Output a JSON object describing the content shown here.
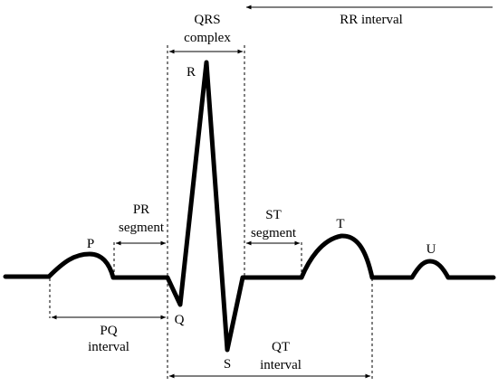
{
  "diagram": {
    "wave_labels": {
      "p": "P",
      "q": "Q",
      "r": "R",
      "s": "S",
      "t": "T",
      "u": "U"
    },
    "qrs_complex": {
      "line1": "QRS",
      "line2": "complex"
    },
    "rr_interval": "RR interval",
    "pr_segment": {
      "line1": "PR",
      "line2": "segment"
    },
    "st_segment": {
      "line1": "ST",
      "line2": "segment"
    },
    "pq_interval": {
      "line1": "PQ",
      "line2": "interval"
    },
    "qt_interval": {
      "line1": "QT",
      "line2": "interval"
    },
    "colors": {
      "stroke": "#000000",
      "background": "#ffffff"
    }
  }
}
